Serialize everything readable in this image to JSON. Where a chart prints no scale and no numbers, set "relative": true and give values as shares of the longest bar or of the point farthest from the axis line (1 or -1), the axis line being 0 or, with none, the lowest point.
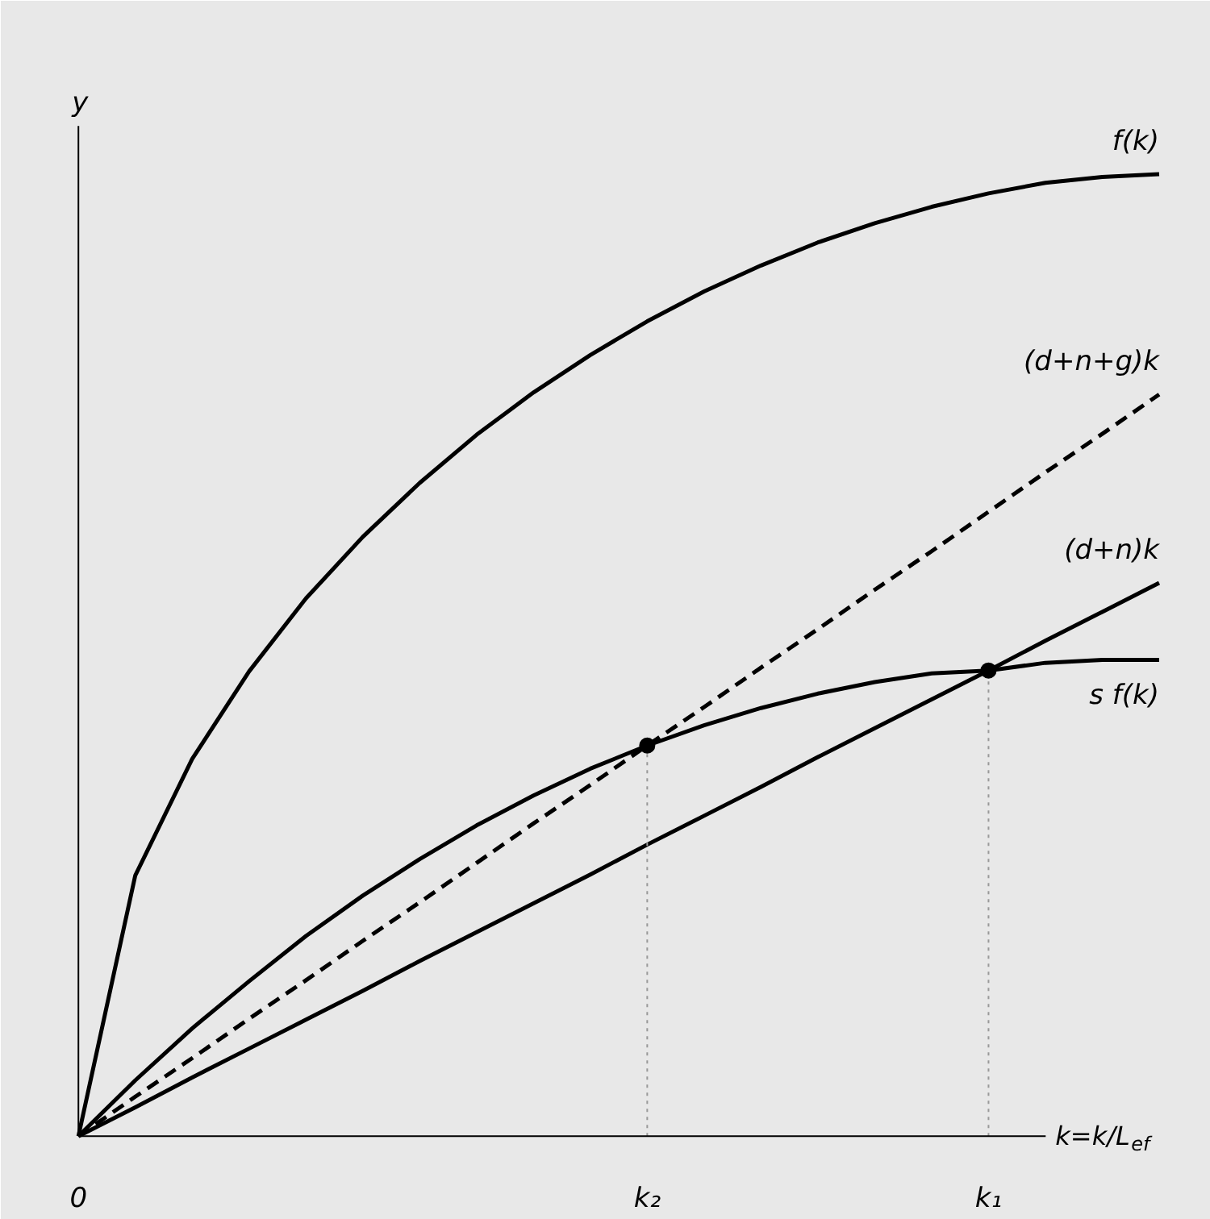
{
  "chart_data": {
    "type": "line",
    "relative": true,
    "xlabel": "k=k/L$_{ef}$",
    "ylabel": "y",
    "categories": [
      "0",
      null,
      null,
      null,
      null,
      null,
      null,
      null,
      null,
      null,
      "k₂",
      null,
      null,
      null,
      null,
      null,
      "k₁",
      null,
      null,
      null
    ],
    "series": [
      {
        "name": "f(k)",
        "color": "#000000",
        "values": [
          0,
          0.271,
          0.392,
          0.483,
          0.559,
          0.623,
          0.679,
          0.729,
          0.773,
          0.812,
          0.847,
          0.878,
          0.905,
          0.929,
          0.949,
          0.966,
          0.98,
          0.991,
          0.997,
          1
        ]
      },
      {
        "name": "(d+n+g)k",
        "color": "#000000",
        "line_style": "dashed",
        "values": [
          0,
          0.041,
          0.081,
          0.122,
          0.162,
          0.203,
          0.243,
          0.284,
          0.325,
          0.365,
          0.406,
          0.446,
          0.487,
          0.527,
          0.568,
          0.608,
          0.649,
          0.69,
          0.73,
          0.771
        ]
      },
      {
        "name": "(d+n)k",
        "color": "#000000",
        "values": [
          0,
          0.03,
          0.061,
          0.091,
          0.121,
          0.151,
          0.182,
          0.212,
          0.242,
          0.272,
          0.303,
          0.333,
          0.363,
          0.394,
          0.424,
          0.454,
          0.484,
          0.515,
          0.545,
          0.575
        ]
      },
      {
        "name": "s f(k)",
        "color": "#000000",
        "values": [
          0,
          0.058,
          0.112,
          0.161,
          0.208,
          0.25,
          0.288,
          0.323,
          0.354,
          0.382,
          0.406,
          0.427,
          0.445,
          0.46,
          0.472,
          0.481,
          0.484,
          0.492,
          0.495,
          0.495
        ]
      },
      {
        "color": "#999999",
        "line_style": "dotted",
        "x": [
          "k₂",
          "k₂"
        ],
        "values": [
          0,
          0.406
        ]
      },
      {
        "color": "#999999",
        "line_style": "dotted",
        "x": [
          "k₁",
          "k₁"
        ],
        "values": [
          0,
          0.484
        ]
      },
      {
        "type": "scatter",
        "color": "#000000",
        "x": [
          "k₂",
          "k₁"
        ],
        "values": [
          0.406,
          0.484
        ]
      }
    ],
    "line_style": "solid"
  }
}
